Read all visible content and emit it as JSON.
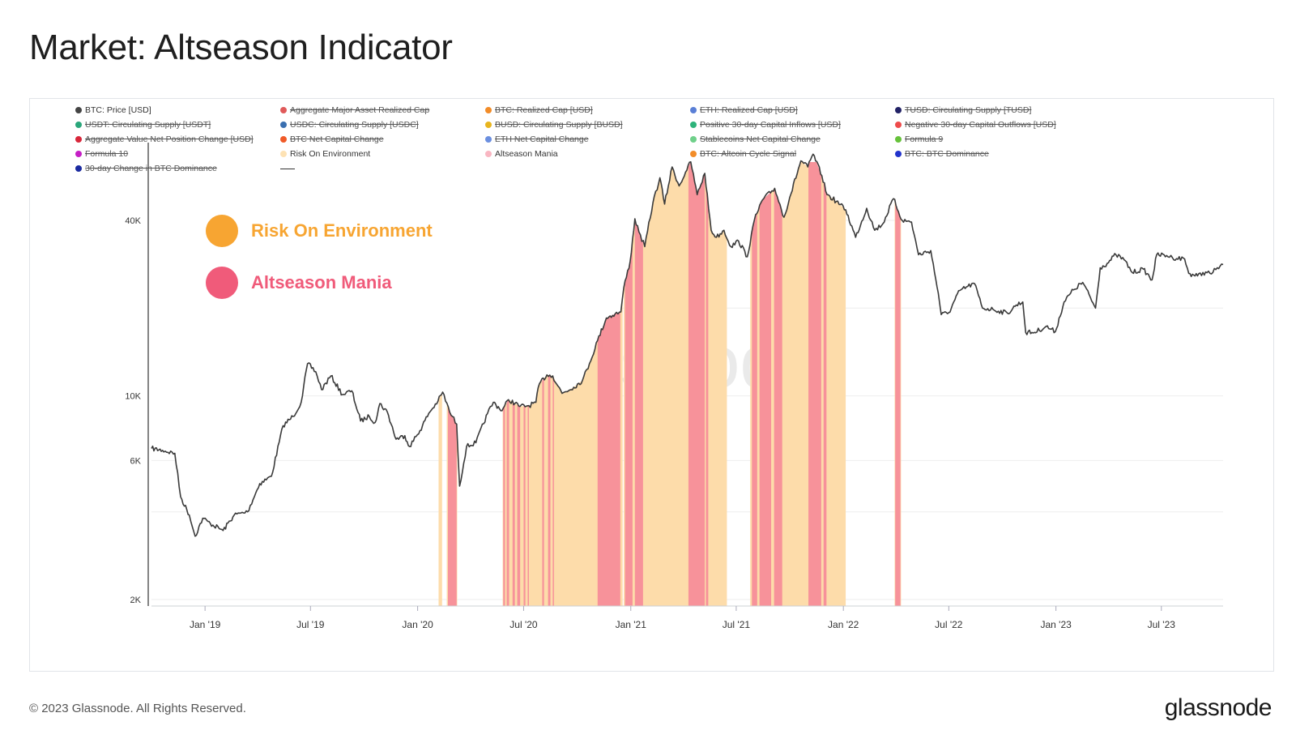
{
  "page": {
    "title": "Market: Altseason Indicator"
  },
  "footer": {
    "copyright": "© 2023 Glassnode. All Rights Reserved.",
    "logo": "glassnode"
  },
  "watermark": "glassnode",
  "annotations": [
    {
      "label": "Risk On Environment",
      "color": "#f7a532"
    },
    {
      "label": "Altseason Mania",
      "color": "#f05b7a"
    }
  ],
  "legend": [
    {
      "label": "BTC: Price [USD]",
      "color": "#444444",
      "active": true
    },
    {
      "label": "Aggregate Major Asset Realized Cap",
      "color": "#e05a5a",
      "active": false
    },
    {
      "label": "BTC: Realized Cap [USD]",
      "color": "#f28c28",
      "active": false
    },
    {
      "label": "ETH: Realized Cap [USD]",
      "color": "#5a7fd6",
      "active": false
    },
    {
      "label": "TUSD: Circulating Supply [TUSD]",
      "color": "#222266",
      "active": false
    },
    {
      "label": "USDT: Circulating Supply [USDT]",
      "color": "#2aa67a",
      "active": false
    },
    {
      "label": "USDC: Circulating Supply [USDC]",
      "color": "#3a6fb0",
      "active": false
    },
    {
      "label": "BUSD: Circulating Supply [BUSD]",
      "color": "#e8b51e",
      "active": false
    },
    {
      "label": "Positive 30-day Capital Inflows [USD]",
      "color": "#2db37a",
      "active": false
    },
    {
      "label": "Negative 30-day Capital Outflows [USD]",
      "color": "#ee4b4b",
      "active": false
    },
    {
      "label": "Aggregate Value Net Position Change [USD]",
      "color": "#d8263a",
      "active": false
    },
    {
      "label": "BTC Net Capital Change",
      "color": "#f05a28",
      "active": false
    },
    {
      "label": "ETH Net Capital Change",
      "color": "#6b8fe0",
      "active": false
    },
    {
      "label": "Stablecoins Net Capital Change",
      "color": "#6fd08a",
      "active": false
    },
    {
      "label": "Formula 9",
      "color": "#66c23a",
      "active": false
    },
    {
      "label": "Formula 10",
      "color": "#c51fc5",
      "active": false
    },
    {
      "label": "Risk On Environment",
      "color": "#fde2b4",
      "active": true
    },
    {
      "label": "Altseason Mania",
      "color": "#f9b6c2",
      "active": true
    },
    {
      "label": "BTC: Altcoin Cycle Signal",
      "color": "#f28c28",
      "active": false
    },
    {
      "label": "BTC: BTC Dominance",
      "color": "#2233cc",
      "active": false
    },
    {
      "label": "30-day Change in BTC Dominance",
      "color": "#1a2aa0",
      "active": false
    }
  ],
  "chart_data": {
    "type": "line",
    "y_scale": "log",
    "y_ticks": [
      {
        "value": 2000,
        "label": "2K"
      },
      {
        "value": 6000,
        "label": "6K"
      },
      {
        "value": 10000,
        "label": "10K"
      },
      {
        "value": 40000,
        "label": "40K"
      }
    ],
    "x_ticks": [
      {
        "date": "2019-01-01",
        "label": "Jan '19"
      },
      {
        "date": "2019-07-01",
        "label": "Jul '19"
      },
      {
        "date": "2020-01-01",
        "label": "Jan '20"
      },
      {
        "date": "2020-07-01",
        "label": "Jul '20"
      },
      {
        "date": "2021-01-01",
        "label": "Jan '21"
      },
      {
        "date": "2021-07-01",
        "label": "Jul '21"
      },
      {
        "date": "2022-01-01",
        "label": "Jan '22"
      },
      {
        "date": "2022-07-01",
        "label": "Jul '22"
      },
      {
        "date": "2023-01-01",
        "label": "Jan '23"
      },
      {
        "date": "2023-07-01",
        "label": "Jul '23"
      }
    ],
    "x_range": [
      "2018-10-01",
      "2023-10-15"
    ],
    "series": [
      {
        "name": "BTC: Price [USD]",
        "color": "#3a3a3a",
        "points": [
          [
            "2018-10-01",
            6600
          ],
          [
            "2018-10-20",
            6500
          ],
          [
            "2018-11-10",
            6350
          ],
          [
            "2018-11-20",
            4500
          ],
          [
            "2018-12-05",
            3900
          ],
          [
            "2018-12-15",
            3300
          ],
          [
            "2018-12-28",
            3800
          ],
          [
            "2019-01-10",
            3650
          ],
          [
            "2019-02-01",
            3450
          ],
          [
            "2019-02-20",
            3900
          ],
          [
            "2019-03-15",
            4000
          ],
          [
            "2019-04-05",
            5000
          ],
          [
            "2019-04-25",
            5300
          ],
          [
            "2019-05-15",
            7900
          ],
          [
            "2019-06-01",
            8500
          ],
          [
            "2019-06-15",
            9500
          ],
          [
            "2019-06-26",
            12900
          ],
          [
            "2019-07-10",
            12100
          ],
          [
            "2019-07-20",
            10500
          ],
          [
            "2019-08-05",
            11700
          ],
          [
            "2019-08-25",
            10100
          ],
          [
            "2019-09-10",
            10400
          ],
          [
            "2019-09-25",
            8200
          ],
          [
            "2019-10-10",
            8500
          ],
          [
            "2019-10-20",
            8100
          ],
          [
            "2019-10-28",
            9400
          ],
          [
            "2019-11-10",
            8800
          ],
          [
            "2019-11-25",
            7100
          ],
          [
            "2019-12-10",
            7300
          ],
          [
            "2019-12-18",
            6700
          ],
          [
            "2020-01-05",
            7600
          ],
          [
            "2020-01-20",
            8700
          ],
          [
            "2020-02-05",
            9600
          ],
          [
            "2020-02-13",
            10300
          ],
          [
            "2020-02-25",
            8800
          ],
          [
            "2020-03-08",
            8000
          ],
          [
            "2020-03-13",
            4900
          ],
          [
            "2020-03-25",
            6700
          ],
          [
            "2020-04-10",
            6900
          ],
          [
            "2020-04-30",
            8700
          ],
          [
            "2020-05-10",
            9500
          ],
          [
            "2020-05-25",
            8900
          ],
          [
            "2020-06-05",
            9700
          ],
          [
            "2020-06-25",
            9200
          ],
          [
            "2020-07-10",
            9250
          ],
          [
            "2020-07-22",
            9500
          ],
          [
            "2020-07-28",
            11000
          ],
          [
            "2020-08-10",
            11800
          ],
          [
            "2020-08-20",
            11700
          ],
          [
            "2020-09-05",
            10200
          ],
          [
            "2020-09-25",
            10700
          ],
          [
            "2020-10-10",
            11300
          ],
          [
            "2020-10-22",
            12900
          ],
          [
            "2020-11-05",
            15500
          ],
          [
            "2020-11-20",
            18500
          ],
          [
            "2020-12-05",
            19100
          ],
          [
            "2020-12-15",
            19400
          ],
          [
            "2020-12-20",
            23500
          ],
          [
            "2020-12-31",
            29000
          ],
          [
            "2021-01-08",
            40500
          ],
          [
            "2021-01-15",
            36500
          ],
          [
            "2021-01-25",
            32500
          ],
          [
            "2021-02-08",
            46000
          ],
          [
            "2021-02-20",
            56000
          ],
          [
            "2021-02-28",
            45500
          ],
          [
            "2021-03-13",
            61000
          ],
          [
            "2021-03-25",
            52500
          ],
          [
            "2021-04-05",
            58500
          ],
          [
            "2021-04-14",
            63500
          ],
          [
            "2021-04-25",
            49000
          ],
          [
            "2021-05-08",
            58000
          ],
          [
            "2021-05-19",
            37000
          ],
          [
            "2021-05-28",
            35000
          ],
          [
            "2021-06-10",
            37000
          ],
          [
            "2021-06-22",
            32500
          ],
          [
            "2021-07-05",
            34000
          ],
          [
            "2021-07-20",
            30000
          ],
          [
            "2021-08-01",
            40000
          ],
          [
            "2021-08-15",
            47000
          ],
          [
            "2021-09-05",
            51500
          ],
          [
            "2021-09-21",
            41000
          ],
          [
            "2021-10-01",
            48000
          ],
          [
            "2021-10-20",
            64000
          ],
          [
            "2021-11-01",
            61000
          ],
          [
            "2021-11-10",
            67500
          ],
          [
            "2021-11-25",
            57000
          ],
          [
            "2021-12-04",
            49000
          ],
          [
            "2021-12-20",
            46500
          ],
          [
            "2022-01-05",
            43500
          ],
          [
            "2022-01-22",
            35000
          ],
          [
            "2022-02-10",
            44000
          ],
          [
            "2022-02-24",
            37000
          ],
          [
            "2022-03-10",
            39000
          ],
          [
            "2022-03-28",
            47500
          ],
          [
            "2022-04-12",
            40000
          ],
          [
            "2022-04-28",
            39500
          ],
          [
            "2022-05-10",
            30500
          ],
          [
            "2022-05-31",
            31500
          ],
          [
            "2022-06-13",
            22500
          ],
          [
            "2022-06-18",
            19000
          ],
          [
            "2022-07-01",
            19300
          ],
          [
            "2022-07-20",
            23000
          ],
          [
            "2022-08-14",
            24300
          ],
          [
            "2022-08-28",
            20000
          ],
          [
            "2022-09-15",
            19800
          ],
          [
            "2022-10-10",
            19200
          ],
          [
            "2022-10-25",
            20500
          ],
          [
            "2022-11-05",
            21000
          ],
          [
            "2022-11-10",
            16500
          ],
          [
            "2022-11-25",
            16500
          ],
          [
            "2022-12-15",
            17300
          ],
          [
            "2022-12-31",
            16600
          ],
          [
            "2023-01-15",
            21000
          ],
          [
            "2023-01-31",
            23100
          ],
          [
            "2023-02-16",
            24500
          ],
          [
            "2023-03-10",
            20000
          ],
          [
            "2023-03-18",
            27500
          ],
          [
            "2023-03-30",
            28500
          ],
          [
            "2023-04-14",
            30500
          ],
          [
            "2023-04-28",
            29300
          ],
          [
            "2023-05-12",
            26500
          ],
          [
            "2023-05-31",
            27200
          ],
          [
            "2023-06-15",
            25000
          ],
          [
            "2023-06-23",
            30500
          ],
          [
            "2023-07-10",
            30300
          ],
          [
            "2023-07-20",
            29800
          ],
          [
            "2023-08-10",
            29500
          ],
          [
            "2023-08-17",
            26300
          ],
          [
            "2023-09-01",
            25800
          ],
          [
            "2023-09-15",
            26600
          ],
          [
            "2023-09-25",
            26200
          ],
          [
            "2023-10-05",
            27500
          ],
          [
            "2023-10-15",
            28200
          ]
        ]
      }
    ],
    "bands": {
      "risk_on": {
        "name": "Risk On Environment",
        "color": "#fddcaa",
        "ranges": [
          [
            "2020-02-06",
            "2020-02-12"
          ],
          [
            "2020-02-20",
            "2020-03-09"
          ],
          [
            "2020-05-26",
            "2020-12-18"
          ],
          [
            "2020-12-20",
            "2021-06-15"
          ],
          [
            "2021-07-25",
            "2022-01-05"
          ],
          [
            "2022-03-30",
            "2022-04-10"
          ]
        ]
      },
      "mania": {
        "name": "Altseason Mania",
        "color": "#f7929a",
        "ranges": [
          [
            "2020-02-22",
            "2020-03-08"
          ],
          [
            "2020-05-27",
            "2020-05-30"
          ],
          [
            "2020-06-02",
            "2020-06-06"
          ],
          [
            "2020-06-12",
            "2020-06-16"
          ],
          [
            "2020-06-20",
            "2020-06-25"
          ],
          [
            "2020-07-01",
            "2020-07-04"
          ],
          [
            "2020-07-08",
            "2020-07-10"
          ],
          [
            "2020-08-02",
            "2020-08-05"
          ],
          [
            "2020-08-12",
            "2020-08-16"
          ],
          [
            "2020-08-20",
            "2020-08-22"
          ],
          [
            "2020-11-05",
            "2020-12-14"
          ],
          [
            "2020-12-22",
            "2021-01-04"
          ],
          [
            "2021-01-08",
            "2021-01-22"
          ],
          [
            "2021-04-10",
            "2021-05-08"
          ],
          [
            "2021-05-10",
            "2021-05-14"
          ],
          [
            "2021-07-28",
            "2021-08-06"
          ],
          [
            "2021-08-10",
            "2021-08-30"
          ],
          [
            "2021-09-04",
            "2021-09-18"
          ],
          [
            "2021-11-02",
            "2021-11-24"
          ],
          [
            "2021-11-28",
            "2021-12-03"
          ],
          [
            "2022-03-31",
            "2022-04-09"
          ]
        ]
      }
    }
  }
}
